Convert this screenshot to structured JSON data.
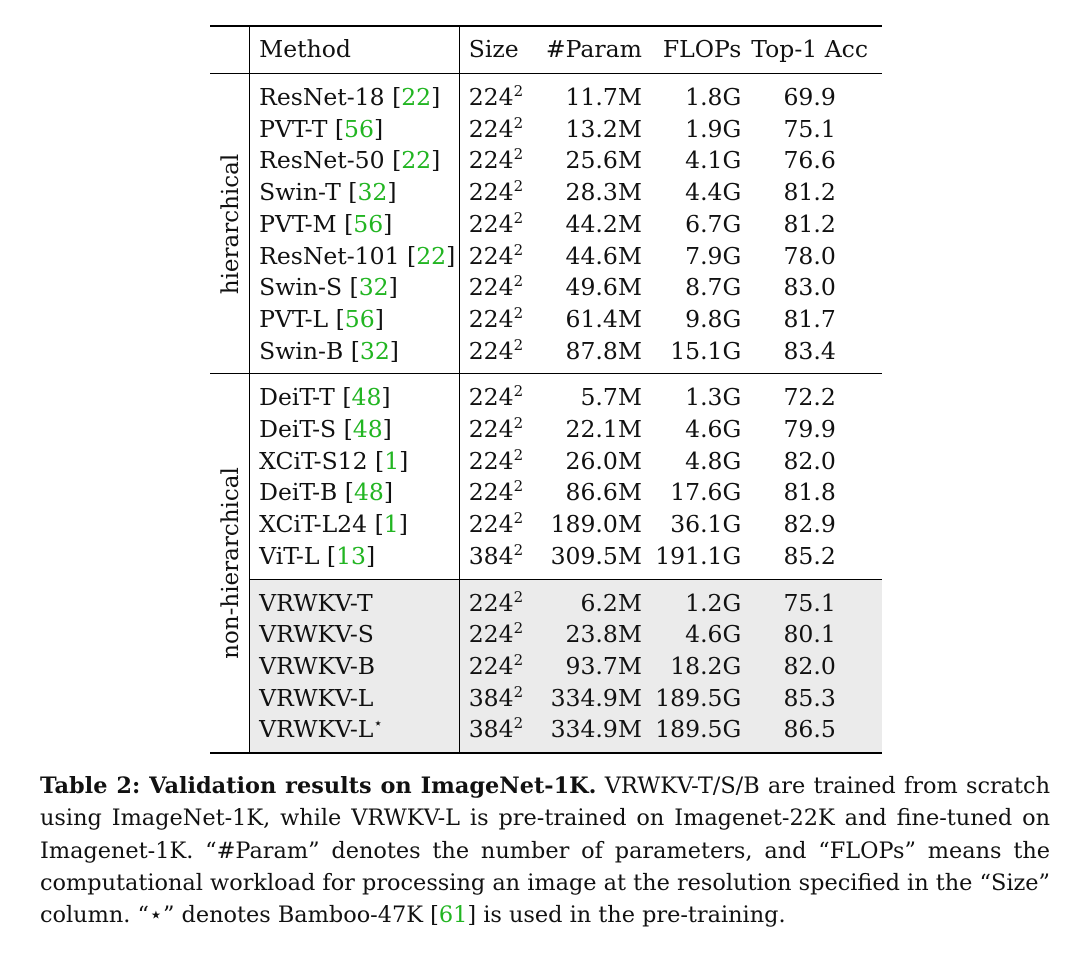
{
  "table": {
    "headers": {
      "method": "Method",
      "size": "Size",
      "params": "#Param",
      "flops": "FLOPs",
      "acc": "Top-1 Acc"
    },
    "groups": {
      "hierarchical": "hierarchical",
      "non_hierarchical": "non-hierarchical"
    },
    "hierarchical_rows": [
      {
        "method": "ResNet-18",
        "ref": "22",
        "size_base": "224",
        "size_exp": "2",
        "params": "11.7M",
        "flops": "1.8G",
        "acc": "69.9"
      },
      {
        "method": "PVT-T",
        "ref": "56",
        "size_base": "224",
        "size_exp": "2",
        "params": "13.2M",
        "flops": "1.9G",
        "acc": "75.1"
      },
      {
        "method": "ResNet-50",
        "ref": "22",
        "size_base": "224",
        "size_exp": "2",
        "params": "25.6M",
        "flops": "4.1G",
        "acc": "76.6"
      },
      {
        "method": "Swin-T",
        "ref": "32",
        "size_base": "224",
        "size_exp": "2",
        "params": "28.3M",
        "flops": "4.4G",
        "acc": "81.2"
      },
      {
        "method": "PVT-M",
        "ref": "56",
        "size_base": "224",
        "size_exp": "2",
        "params": "44.2M",
        "flops": "6.7G",
        "acc": "81.2"
      },
      {
        "method": "ResNet-101",
        "ref": "22",
        "size_base": "224",
        "size_exp": "2",
        "params": "44.6M",
        "flops": "7.9G",
        "acc": "78.0"
      },
      {
        "method": "Swin-S",
        "ref": "32",
        "size_base": "224",
        "size_exp": "2",
        "params": "49.6M",
        "flops": "8.7G",
        "acc": "83.0"
      },
      {
        "method": "PVT-L",
        "ref": "56",
        "size_base": "224",
        "size_exp": "2",
        "params": "61.4M",
        "flops": "9.8G",
        "acc": "81.7"
      },
      {
        "method": "Swin-B",
        "ref": "32",
        "size_base": "224",
        "size_exp": "2",
        "params": "87.8M",
        "flops": "15.1G",
        "acc": "83.4"
      }
    ],
    "non_hierarchical_rows": [
      {
        "method": "DeiT-T",
        "ref": "48",
        "size_base": "224",
        "size_exp": "2",
        "params": "5.7M",
        "flops": "1.3G",
        "acc": "72.2"
      },
      {
        "method": "DeiT-S",
        "ref": "48",
        "size_base": "224",
        "size_exp": "2",
        "params": "22.1M",
        "flops": "4.6G",
        "acc": "79.9"
      },
      {
        "method": "XCiT-S12",
        "ref": "1",
        "size_base": "224",
        "size_exp": "2",
        "params": "26.0M",
        "flops": "4.8G",
        "acc": "82.0"
      },
      {
        "method": "DeiT-B",
        "ref": "48",
        "size_base": "224",
        "size_exp": "2",
        "params": "86.6M",
        "flops": "17.6G",
        "acc": "81.8"
      },
      {
        "method": "XCiT-L24",
        "ref": "1",
        "size_base": "224",
        "size_exp": "2",
        "params": "189.0M",
        "flops": "36.1G",
        "acc": "82.9"
      },
      {
        "method": "ViT-L",
        "ref": "13",
        "size_base": "384",
        "size_exp": "2",
        "params": "309.5M",
        "flops": "191.1G",
        "acc": "85.2"
      }
    ],
    "vrwkv_rows": [
      {
        "method": "VRWKV-T",
        "mark": "",
        "size_base": "224",
        "size_exp": "2",
        "params": "6.2M",
        "flops": "1.2G",
        "acc": "75.1"
      },
      {
        "method": "VRWKV-S",
        "mark": "",
        "size_base": "224",
        "size_exp": "2",
        "params": "23.8M",
        "flops": "4.6G",
        "acc": "80.1"
      },
      {
        "method": "VRWKV-B",
        "mark": "",
        "size_base": "224",
        "size_exp": "2",
        "params": "93.7M",
        "flops": "18.2G",
        "acc": "82.0"
      },
      {
        "method": "VRWKV-L",
        "mark": "",
        "size_base": "384",
        "size_exp": "2",
        "params": "334.9M",
        "flops": "189.5G",
        "acc": "85.3"
      },
      {
        "method": "VRWKV-L",
        "mark": "⋆",
        "size_base": "384",
        "size_exp": "2",
        "params": "334.9M",
        "flops": "189.5G",
        "acc": "86.5"
      }
    ],
    "shade_color": "#ebebeb",
    "ref_color": "#22b522"
  },
  "caption": {
    "label": "Table 2: Validation results on ImageNet-1K.",
    "text_before_ref": " VRWKV-T/S/B are trained from scratch using ImageNet-1K, while VRWKV-L is pre-trained on Imagenet-22K and fine-tuned on Imagenet-1K. “#Param” denotes the number of parameters, and “FLOPs” means the computational workload for processing an image at the resolution specified in the “Size” column. “⋆” denotes Bamboo-47K ",
    "ref": "61",
    "text_after_ref": " is used in the pre-training."
  }
}
